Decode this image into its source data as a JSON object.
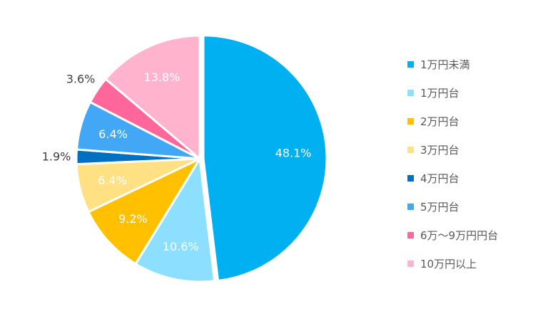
{
  "chart_data": {
    "type": "pie",
    "title": "",
    "legend_position": "right",
    "start_angle_deg": 0,
    "direction": "clockwise",
    "labels": [
      "1万円未満",
      "1万円台",
      "2万円台",
      "3万円台",
      "4万円台",
      "5万円台",
      "6万～9万円円台",
      "10万円以上"
    ],
    "values": [
      48.1,
      10.6,
      9.2,
      6.4,
      1.9,
      6.4,
      3.6,
      13.8
    ],
    "value_labels": [
      "48.1%",
      "10.6%",
      "9.2%",
      "6.4%",
      "1.9%",
      "6.4%",
      "3.6%",
      "13.8%"
    ],
    "colors": [
      "#00B0F0",
      "#8DDFFF",
      "#FFC000",
      "#FFE082",
      "#0070C0",
      "#42A8F5",
      "#FF6699",
      "#FFB3CC"
    ],
    "label_colors": [
      "#ffffff",
      "#ffffff",
      "#ffffff",
      "#ffffff",
      "#404040",
      "#ffffff",
      "#404040",
      "#ffffff"
    ],
    "label_outside": [
      false,
      false,
      false,
      false,
      true,
      false,
      true,
      false
    ],
    "exploded": [
      true,
      false,
      false,
      false,
      false,
      false,
      false,
      false
    ]
  }
}
